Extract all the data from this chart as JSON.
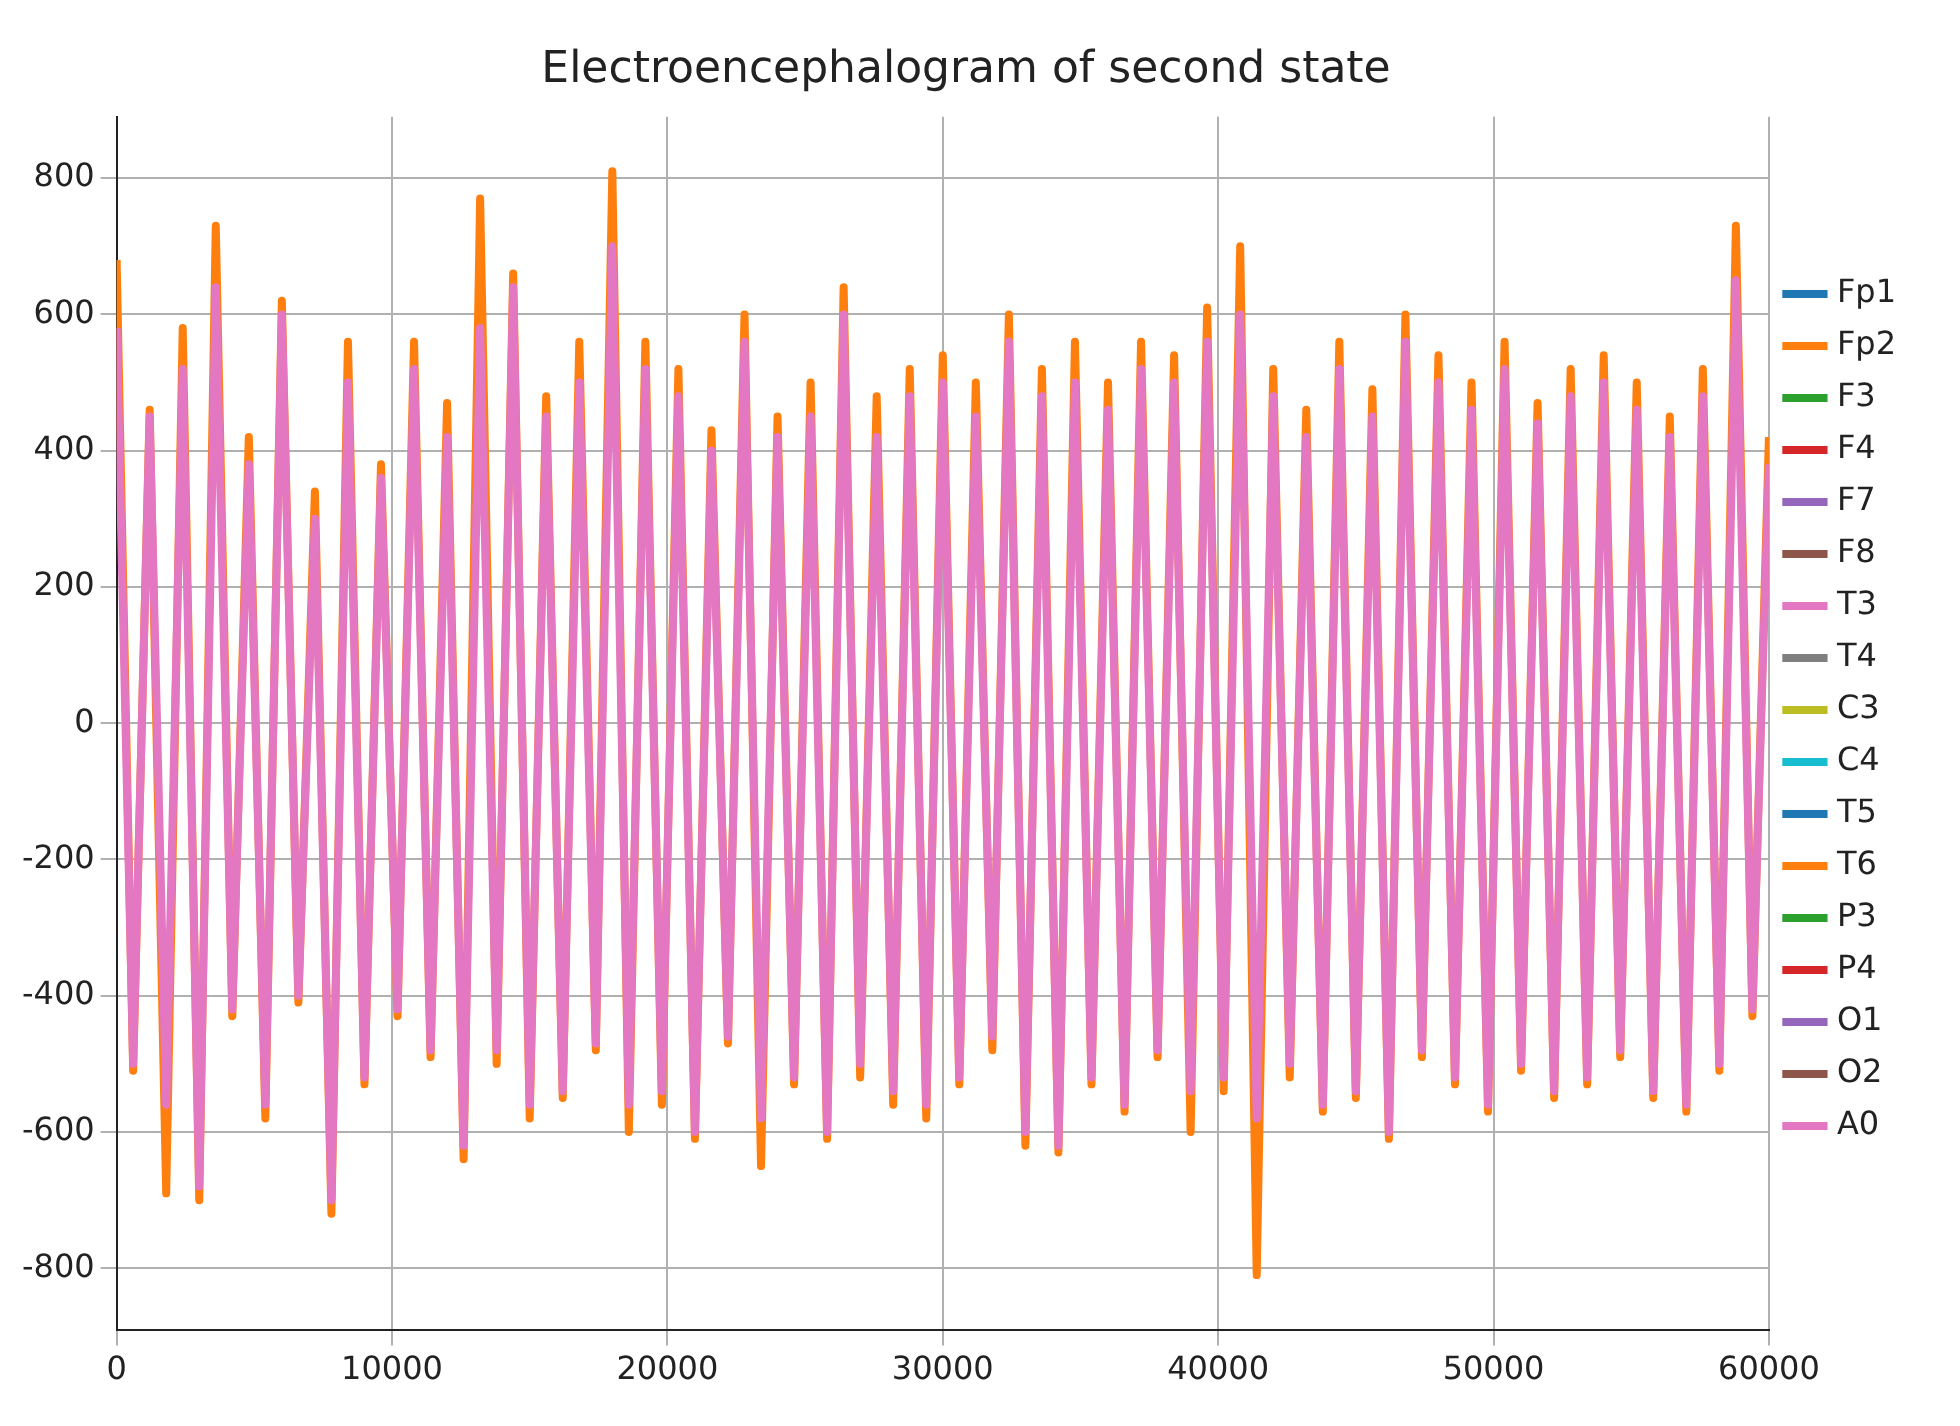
{
  "chart_data": {
    "type": "line",
    "title": "Electroencephalogram of second state",
    "x": [
      0,
      600,
      1200,
      1800,
      2400,
      3000,
      3600,
      4200,
      4800,
      5400,
      6000,
      6600,
      7200,
      7800,
      8400,
      9000,
      9600,
      10200,
      10800,
      11400,
      12000,
      12600,
      13200,
      13800,
      14400,
      15000,
      15600,
      16200,
      16800,
      17400,
      18000,
      18600,
      19200,
      19800,
      20400,
      21000,
      21600,
      22200,
      22800,
      23400,
      24000,
      24600,
      25200,
      25800,
      26400,
      27000,
      27600,
      28200,
      28800,
      29400,
      30000,
      30600,
      31200,
      31800,
      32400,
      33000,
      33600,
      34200,
      34800,
      35400,
      36000,
      36600,
      37200,
      37800,
      38400,
      39000,
      39600,
      40200,
      40800,
      41400,
      42000,
      42600,
      43200,
      43800,
      44400,
      45000,
      45600,
      46200,
      46800,
      47400,
      48000,
      48600,
      49200,
      49800,
      50400,
      51000,
      51600,
      52200,
      52800,
      53400,
      54000,
      54600,
      55200,
      55800,
      56400,
      57000,
      57600,
      58200,
      58800,
      59400,
      60000
    ],
    "series": [
      {
        "name": "Fp1",
        "color": "#1f77b4",
        "values": [
          null,
          null,
          null,
          null,
          null,
          null,
          null,
          null,
          null,
          null,
          null,
          null,
          null,
          null,
          null,
          null,
          null,
          null,
          null,
          null,
          null,
          null,
          null,
          null,
          null,
          null,
          null,
          null,
          null,
          null,
          null,
          null,
          null,
          null,
          null,
          null,
          null,
          null,
          null,
          null,
          null,
          null,
          null,
          null,
          null,
          null,
          null,
          null,
          null,
          null,
          null,
          null,
          null,
          null,
          null,
          null,
          null,
          null,
          null,
          null,
          null,
          null,
          null,
          null,
          null,
          null,
          null,
          null,
          null,
          null,
          null,
          null,
          null,
          null,
          null,
          null,
          null,
          null,
          null,
          null,
          null,
          null,
          null,
          null,
          null,
          null,
          null,
          null,
          null,
          null,
          null,
          null,
          null,
          null,
          null,
          null,
          null,
          null,
          null,
          null,
          null
        ]
      },
      {
        "name": "Fp2",
        "color": "#ff7f0e",
        "values": [
          680,
          -510,
          460,
          -690,
          580,
          -700,
          730,
          -430,
          420,
          -580,
          620,
          -410,
          340,
          -720,
          560,
          -530,
          380,
          -430,
          560,
          -490,
          470,
          -640,
          770,
          -500,
          660,
          -580,
          480,
          -550,
          560,
          -480,
          810,
          -600,
          560,
          -560,
          520,
          -610,
          430,
          -470,
          600,
          -650,
          450,
          -530,
          500,
          -610,
          640,
          -520,
          480,
          -560,
          520,
          -580,
          540,
          -530,
          500,
          -480,
          600,
          -620,
          520,
          -630,
          560,
          -530,
          500,
          -570,
          560,
          -490,
          540,
          -600,
          610,
          -540,
          700,
          -810,
          520,
          -520,
          460,
          -570,
          560,
          -550,
          490,
          -610,
          600,
          -490,
          540,
          -530,
          500,
          -570,
          560,
          -510,
          470,
          -550,
          520,
          -530,
          540,
          -490,
          500,
          -550,
          450,
          -570,
          520,
          -510,
          730,
          -430,
          420
        ]
      },
      {
        "name": "F3",
        "color": "#2ca02c",
        "values": [
          null,
          null,
          null,
          null,
          null,
          null,
          null,
          null,
          null,
          null,
          null,
          null,
          null,
          null,
          null,
          null,
          null,
          null,
          null,
          null,
          null,
          null,
          null,
          null,
          null,
          null,
          null,
          null,
          null,
          null,
          null,
          null,
          null,
          null,
          null,
          null,
          null,
          null,
          null,
          null,
          null,
          null,
          null,
          null,
          null,
          null,
          null,
          null,
          null,
          null,
          null,
          null,
          null,
          null,
          null,
          null,
          null,
          null,
          null,
          null,
          null,
          null,
          null,
          null,
          null,
          null,
          null,
          null,
          null,
          null,
          null,
          null,
          null,
          null,
          null,
          null,
          null,
          null,
          null,
          null,
          null,
          null,
          null,
          null,
          null,
          null,
          null,
          null,
          null,
          null,
          null,
          null,
          null,
          null,
          null,
          null,
          null,
          null,
          null,
          null,
          null
        ]
      },
      {
        "name": "F4",
        "color": "#d62728",
        "values": [
          null,
          null,
          null,
          null,
          null,
          null,
          null,
          null,
          null,
          null,
          null,
          null,
          null,
          null,
          null,
          null,
          null,
          null,
          null,
          null,
          null,
          null,
          null,
          null,
          null,
          null,
          null,
          null,
          null,
          null,
          null,
          null,
          null,
          null,
          null,
          null,
          null,
          null,
          null,
          null,
          null,
          null,
          null,
          null,
          null,
          null,
          null,
          null,
          null,
          null,
          null,
          null,
          null,
          null,
          null,
          null,
          null,
          null,
          null,
          null,
          null,
          null,
          null,
          null,
          null,
          null,
          null,
          null,
          null,
          null,
          null,
          null,
          null,
          null,
          null,
          null,
          null,
          null,
          null,
          null,
          null,
          null,
          null,
          null,
          null,
          null,
          null,
          null,
          null,
          null,
          null,
          null,
          null,
          null,
          null,
          null,
          null,
          null,
          null,
          null,
          null
        ]
      },
      {
        "name": "F7",
        "color": "#9467bd",
        "values": [
          null,
          null,
          null,
          null,
          null,
          null,
          null,
          null,
          null,
          null,
          null,
          null,
          null,
          null,
          null,
          null,
          null,
          null,
          null,
          null,
          null,
          null,
          null,
          null,
          null,
          null,
          null,
          null,
          null,
          null,
          null,
          null,
          null,
          null,
          null,
          null,
          null,
          null,
          null,
          null,
          null,
          null,
          null,
          null,
          null,
          null,
          null,
          null,
          null,
          null,
          null,
          null,
          null,
          null,
          null,
          null,
          null,
          null,
          null,
          null,
          null,
          null,
          null,
          null,
          null,
          null,
          null,
          null,
          null,
          null,
          null,
          null,
          null,
          null,
          null,
          null,
          null,
          null,
          null,
          null,
          null,
          null,
          null,
          null,
          null,
          null,
          null,
          null,
          null,
          null,
          null,
          null,
          null,
          null,
          null,
          null,
          null,
          null,
          null,
          null,
          null
        ]
      },
      {
        "name": "F8",
        "color": "#8c564b",
        "values": [
          null,
          null,
          null,
          null,
          null,
          null,
          null,
          null,
          null,
          null,
          null,
          null,
          null,
          null,
          null,
          null,
          null,
          null,
          null,
          null,
          null,
          null,
          null,
          null,
          null,
          null,
          null,
          null,
          null,
          null,
          null,
          null,
          null,
          null,
          null,
          null,
          null,
          null,
          null,
          null,
          null,
          null,
          null,
          null,
          null,
          null,
          null,
          null,
          null,
          null,
          null,
          null,
          null,
          null,
          null,
          null,
          null,
          null,
          null,
          null,
          null,
          null,
          null,
          null,
          null,
          null,
          null,
          null,
          null,
          null,
          null,
          null,
          null,
          null,
          null,
          null,
          null,
          null,
          null,
          null,
          null,
          null,
          null,
          null,
          null,
          null,
          null,
          null,
          null,
          null,
          null,
          null,
          null,
          null,
          null,
          null,
          null,
          null,
          null,
          null,
          null
        ]
      },
      {
        "name": "T3",
        "color": "#e377c2",
        "values": [
          null,
          null,
          null,
          null,
          null,
          null,
          null,
          null,
          null,
          null,
          null,
          null,
          null,
          null,
          null,
          null,
          null,
          null,
          null,
          null,
          null,
          null,
          null,
          null,
          null,
          null,
          null,
          null,
          null,
          null,
          null,
          null,
          null,
          null,
          null,
          null,
          null,
          null,
          null,
          null,
          null,
          null,
          null,
          null,
          null,
          null,
          null,
          null,
          null,
          null,
          null,
          null,
          null,
          null,
          null,
          null,
          null,
          null,
          null,
          null,
          null,
          null,
          null,
          null,
          null,
          null,
          null,
          null,
          null,
          null,
          null,
          null,
          null,
          null,
          null,
          null,
          null,
          null,
          null,
          null,
          null,
          null,
          null,
          null,
          null,
          null,
          null,
          null,
          null,
          null,
          null,
          null,
          null,
          null,
          null,
          null,
          null,
          null,
          null,
          null,
          null
        ]
      },
      {
        "name": "T4",
        "color": "#7f7f7f",
        "values": [
          null,
          null,
          null,
          null,
          null,
          null,
          null,
          null,
          null,
          null,
          null,
          null,
          null,
          null,
          null,
          null,
          null,
          null,
          null,
          null,
          null,
          null,
          null,
          null,
          null,
          null,
          null,
          null,
          null,
          null,
          null,
          null,
          null,
          null,
          null,
          null,
          null,
          null,
          null,
          null,
          null,
          null,
          null,
          null,
          null,
          null,
          null,
          null,
          null,
          null,
          null,
          null,
          null,
          null,
          null,
          null,
          null,
          null,
          null,
          null,
          null,
          null,
          null,
          null,
          null,
          null,
          null,
          null,
          null,
          null,
          null,
          null,
          null,
          null,
          null,
          null,
          null,
          null,
          null,
          null,
          null,
          null,
          null,
          null,
          null,
          null,
          null,
          null,
          null,
          null,
          null,
          null,
          null,
          null,
          null,
          null,
          null,
          null,
          null,
          null,
          null
        ]
      },
      {
        "name": "C3",
        "color": "#bcbd22",
        "values": [
          null,
          null,
          null,
          null,
          null,
          null,
          null,
          null,
          null,
          null,
          null,
          null,
          null,
          null,
          null,
          null,
          null,
          null,
          null,
          null,
          null,
          null,
          null,
          null,
          null,
          null,
          null,
          null,
          null,
          null,
          null,
          null,
          null,
          null,
          null,
          null,
          null,
          null,
          null,
          null,
          null,
          null,
          null,
          null,
          null,
          null,
          null,
          null,
          null,
          null,
          null,
          null,
          null,
          null,
          null,
          null,
          null,
          null,
          null,
          null,
          null,
          null,
          null,
          null,
          null,
          null,
          null,
          null,
          null,
          null,
          null,
          null,
          null,
          null,
          null,
          null,
          null,
          null,
          null,
          null,
          null,
          null,
          null,
          null,
          null,
          null,
          null,
          null,
          null,
          null,
          null,
          null,
          null,
          null,
          null,
          null,
          null,
          null,
          null,
          null,
          null
        ]
      },
      {
        "name": "C4",
        "color": "#17becf",
        "values": [
          null,
          null,
          null,
          null,
          null,
          null,
          null,
          null,
          null,
          null,
          null,
          null,
          null,
          null,
          null,
          null,
          null,
          null,
          null,
          null,
          null,
          null,
          null,
          null,
          null,
          null,
          null,
          null,
          null,
          null,
          null,
          null,
          null,
          null,
          null,
          null,
          null,
          null,
          null,
          null,
          null,
          null,
          null,
          null,
          null,
          null,
          null,
          null,
          null,
          null,
          null,
          null,
          null,
          null,
          null,
          null,
          null,
          null,
          null,
          null,
          null,
          null,
          null,
          null,
          null,
          null,
          null,
          null,
          null,
          null,
          null,
          null,
          null,
          null,
          null,
          null,
          null,
          null,
          null,
          null,
          null,
          null,
          null,
          null,
          null,
          null,
          null,
          null,
          null,
          null,
          null,
          null,
          null,
          null,
          null,
          null,
          null,
          null,
          null,
          null,
          null
        ]
      },
      {
        "name": "T5",
        "color": "#1f77b4",
        "values": [
          null,
          null,
          null,
          null,
          null,
          null,
          null,
          null,
          null,
          null,
          null,
          null,
          null,
          null,
          null,
          null,
          null,
          null,
          null,
          null,
          null,
          null,
          null,
          null,
          null,
          null,
          null,
          null,
          null,
          null,
          null,
          null,
          null,
          null,
          null,
          null,
          null,
          null,
          null,
          null,
          null,
          null,
          null,
          null,
          null,
          null,
          null,
          null,
          null,
          null,
          null,
          null,
          null,
          null,
          null,
          null,
          null,
          null,
          null,
          null,
          null,
          null,
          null,
          null,
          null,
          null,
          null,
          null,
          null,
          null,
          null,
          null,
          null,
          null,
          null,
          null,
          null,
          null,
          null,
          null,
          null,
          null,
          null,
          null,
          null,
          null,
          null,
          null,
          null,
          null,
          null,
          null,
          null,
          null,
          null,
          null,
          null,
          null,
          null,
          null,
          null
        ]
      },
      {
        "name": "T6",
        "color": "#ff7f0e",
        "values": [
          null,
          null,
          null,
          null,
          null,
          null,
          null,
          null,
          null,
          null,
          null,
          null,
          null,
          null,
          null,
          null,
          null,
          null,
          null,
          null,
          null,
          null,
          null,
          null,
          null,
          null,
          null,
          null,
          null,
          null,
          null,
          null,
          null,
          null,
          null,
          null,
          null,
          null,
          null,
          null,
          null,
          null,
          null,
          null,
          null,
          null,
          null,
          null,
          null,
          null,
          null,
          null,
          null,
          null,
          null,
          null,
          null,
          null,
          null,
          null,
          null,
          null,
          null,
          null,
          null,
          null,
          null,
          null,
          null,
          null,
          null,
          null,
          null,
          null,
          null,
          null,
          null,
          null,
          null,
          null,
          null,
          null,
          null,
          null,
          null,
          null,
          null,
          null,
          null,
          null,
          null,
          null,
          null,
          null,
          null,
          null,
          null,
          null,
          null,
          null,
          null
        ]
      },
      {
        "name": "P3",
        "color": "#2ca02c",
        "values": [
          null,
          null,
          null,
          null,
          null,
          null,
          null,
          null,
          null,
          null,
          null,
          null,
          null,
          null,
          null,
          null,
          null,
          null,
          null,
          null,
          null,
          null,
          null,
          null,
          null,
          null,
          null,
          null,
          null,
          null,
          null,
          null,
          null,
          null,
          null,
          null,
          null,
          null,
          null,
          null,
          null,
          null,
          null,
          null,
          null,
          null,
          null,
          null,
          null,
          null,
          null,
          null,
          null,
          null,
          null,
          null,
          null,
          null,
          null,
          null,
          null,
          null,
          null,
          null,
          null,
          null,
          null,
          null,
          null,
          null,
          null,
          null,
          null,
          null,
          null,
          null,
          null,
          null,
          null,
          null,
          null,
          null,
          null,
          null,
          null,
          null,
          null,
          null,
          null,
          null,
          null,
          null,
          null,
          null,
          null,
          null,
          null,
          null,
          null,
          null,
          null
        ]
      },
      {
        "name": "P4",
        "color": "#d62728",
        "values": [
          null,
          null,
          null,
          null,
          null,
          null,
          null,
          null,
          null,
          null,
          null,
          null,
          null,
          null,
          null,
          null,
          null,
          null,
          null,
          null,
          null,
          null,
          null,
          null,
          null,
          null,
          null,
          null,
          null,
          null,
          null,
          null,
          null,
          null,
          null,
          null,
          null,
          null,
          null,
          null,
          null,
          null,
          null,
          null,
          null,
          null,
          null,
          null,
          null,
          null,
          null,
          null,
          null,
          null,
          null,
          null,
          null,
          null,
          null,
          null,
          null,
          null,
          null,
          null,
          null,
          null,
          null,
          null,
          null,
          null,
          null,
          null,
          null,
          null,
          null,
          null,
          null,
          null,
          null,
          null,
          null,
          null,
          null,
          null,
          null,
          null,
          null,
          null,
          null,
          null,
          null,
          null,
          null,
          null,
          null,
          null,
          null,
          null,
          null,
          null,
          null
        ]
      },
      {
        "name": "O1",
        "color": "#9467bd",
        "values": [
          null,
          null,
          null,
          null,
          null,
          null,
          null,
          null,
          null,
          null,
          null,
          null,
          null,
          null,
          null,
          null,
          null,
          null,
          null,
          null,
          null,
          null,
          null,
          null,
          null,
          null,
          null,
          null,
          null,
          null,
          null,
          null,
          null,
          null,
          null,
          null,
          null,
          null,
          null,
          null,
          null,
          null,
          null,
          null,
          null,
          null,
          null,
          null,
          null,
          null,
          null,
          null,
          null,
          null,
          null,
          null,
          null,
          null,
          null,
          null,
          null,
          null,
          null,
          null,
          null,
          null,
          null,
          null,
          null,
          null,
          null,
          null,
          null,
          null,
          null,
          null,
          null,
          null,
          null,
          null,
          null,
          null,
          null,
          null,
          null,
          null,
          null,
          null,
          null,
          null,
          null,
          null,
          null,
          null,
          null,
          null,
          null,
          null,
          null,
          null,
          null
        ]
      },
      {
        "name": "O2",
        "color": "#8c564b",
        "values": [
          null,
          null,
          null,
          null,
          null,
          null,
          null,
          null,
          null,
          null,
          null,
          null,
          null,
          null,
          null,
          null,
          null,
          null,
          null,
          null,
          null,
          null,
          null,
          null,
          null,
          null,
          null,
          null,
          null,
          null,
          null,
          null,
          null,
          null,
          null,
          null,
          null,
          null,
          null,
          null,
          null,
          null,
          null,
          null,
          null,
          null,
          null,
          null,
          null,
          null,
          null,
          null,
          null,
          null,
          null,
          null,
          null,
          null,
          null,
          null,
          null,
          null,
          null,
          null,
          null,
          null,
          null,
          null,
          null,
          null,
          null,
          null,
          null,
          null,
          null,
          null,
          null,
          null,
          null,
          null,
          null,
          null,
          null,
          null,
          null,
          null,
          null,
          null,
          null,
          null,
          null,
          null,
          null,
          null,
          null,
          null,
          null,
          null,
          null,
          null,
          null
        ]
      },
      {
        "name": "A0",
        "color": "#e377c2",
        "values": [
          580,
          -500,
          450,
          -560,
          520,
          -680,
          640,
          -420,
          380,
          -560,
          600,
          -400,
          300,
          -700,
          500,
          -520,
          360,
          -420,
          520,
          -480,
          420,
          -620,
          580,
          -480,
          640,
          -560,
          450,
          -540,
          500,
          -470,
          700,
          -560,
          520,
          -540,
          480,
          -600,
          400,
          -460,
          560,
          -580,
          420,
          -520,
          450,
          -600,
          600,
          -500,
          420,
          -540,
          480,
          -560,
          500,
          -520,
          450,
          -460,
          560,
          -600,
          480,
          -620,
          500,
          -520,
          460,
          -560,
          520,
          -480,
          500,
          -540,
          560,
          -520,
          600,
          -580,
          480,
          -500,
          420,
          -560,
          520,
          -540,
          450,
          -600,
          560,
          -480,
          500,
          -520,
          460,
          -560,
          520,
          -500,
          440,
          -540,
          480,
          -520,
          500,
          -480,
          460,
          -540,
          420,
          -560,
          480,
          -500,
          650,
          -420,
          380
        ]
      }
    ],
    "xlim": [
      0,
      60000
    ],
    "xticks": [
      0,
      10000,
      20000,
      30000,
      40000,
      50000,
      60000
    ],
    "ylim": [
      -890,
      890
    ],
    "yticks": [
      -800,
      -600,
      -400,
      -200,
      0,
      200,
      400,
      600,
      800
    ],
    "grid": true,
    "legend": "right",
    "marker": "none",
    "line_style": "solid"
  }
}
